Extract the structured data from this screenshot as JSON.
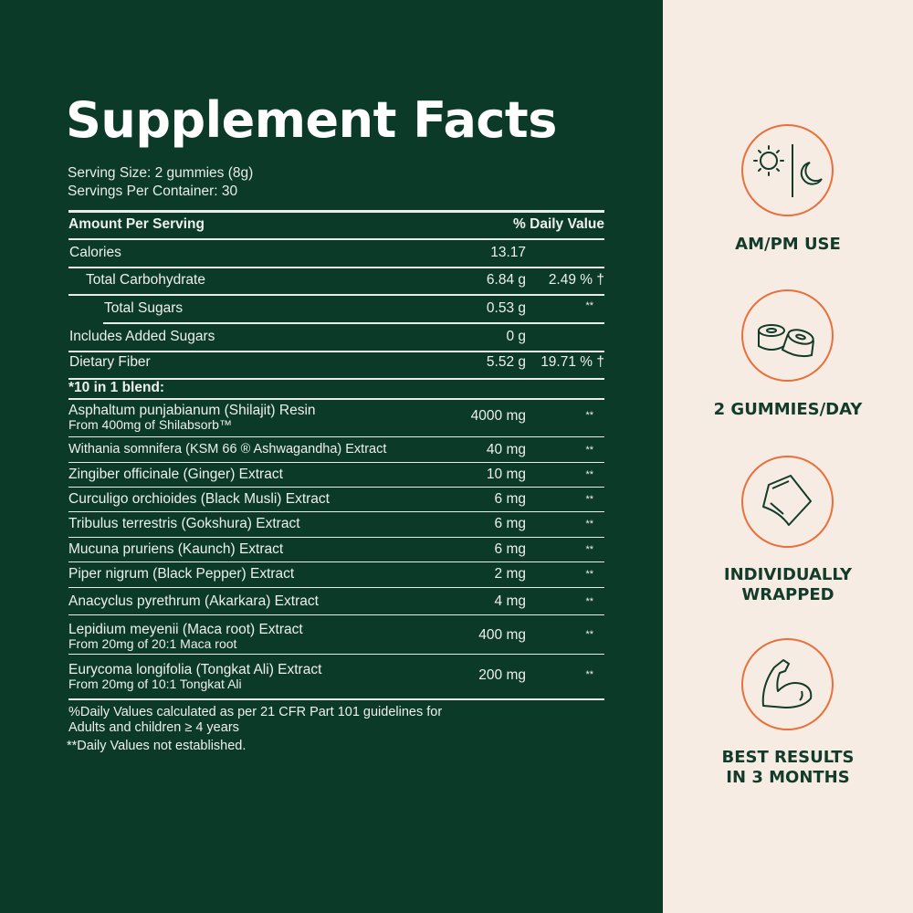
{
  "title": "Supplement Facts",
  "serving_size": "Serving Size: 2 gummies (8g)",
  "servings_per_container": "Servings Per Container: 30",
  "header": {
    "amount": "Amount Per Serving",
    "dv": "% Daily Value"
  },
  "nutrients": [
    {
      "name": "Calories",
      "amount": "13.17",
      "dv": ""
    },
    {
      "name": "Total Carbohydrate",
      "amount": "6.84 g",
      "dv": "2.49 % †"
    },
    {
      "name": "Total Sugars",
      "amount": "0.53 g",
      "dv": "**"
    },
    {
      "name": "Includes Added Sugars",
      "amount": "0 g",
      "dv": ""
    },
    {
      "name": "Dietary Fiber",
      "amount": "5.52 g",
      "dv": "19.71 % †"
    }
  ],
  "blend_title": "*10 in 1 blend:",
  "blend": [
    {
      "name": "Asphaltum punjabianum (Shilajit) Resin",
      "sub": "From 400mg of Shilabsorb™",
      "amount": "4000 mg",
      "dv": "**"
    },
    {
      "name": "Withania somnifera (KSM 66 ® Ashwagandha) Extract",
      "amount": "40 mg",
      "dv": "**"
    },
    {
      "name": "Zingiber officinale (Ginger) Extract",
      "amount": "10 mg",
      "dv": "**"
    },
    {
      "name": "Curculigo orchioides (Black Musli) Extract",
      "amount": "6 mg",
      "dv": "**"
    },
    {
      "name": "Tribulus terrestris (Gokshura) Extract",
      "amount": "6 mg",
      "dv": "**"
    },
    {
      "name": "Mucuna pruriens (Kaunch) Extract",
      "amount": "6 mg",
      "dv": "**"
    },
    {
      "name": "Piper nigrum (Black Pepper) Extract",
      "amount": "2 mg",
      "dv": "**"
    },
    {
      "name": "Anacyclus pyrethrum (Akarkara) Extract",
      "amount": "4 mg",
      "dv": "**"
    },
    {
      "name": "Lepidium meyenii (Maca root) Extract",
      "sub": "From 20mg of 20:1 Maca root",
      "amount": "400 mg",
      "dv": "**"
    },
    {
      "name": "Eurycoma longifolia (Tongkat Ali) Extract",
      "sub": "From 20mg of 10:1 Tongkat Ali",
      "amount": "200 mg",
      "dv": "**"
    }
  ],
  "footnotes": [
    "%Daily Values calculated as per 21 CFR Part 101 guidelines for",
    "Adults and children ≥ 4 years",
    "**Daily Values not established."
  ],
  "features": [
    {
      "icon": "sun-moon-icon",
      "label": "AM/PM USE"
    },
    {
      "icon": "gummies-icon",
      "label": "2 GUMMIES/DAY"
    },
    {
      "icon": "wrapped-candy-icon",
      "label": "INDIVIDUALLY WRAPPED"
    },
    {
      "icon": "flexed-arm-icon",
      "label": "BEST RESULTS IN 3 MONTHS"
    }
  ],
  "colors": {
    "panel": "#0b3a28",
    "background": "#f6ece4",
    "accent": "#e8703a",
    "label": "#123b2a"
  }
}
